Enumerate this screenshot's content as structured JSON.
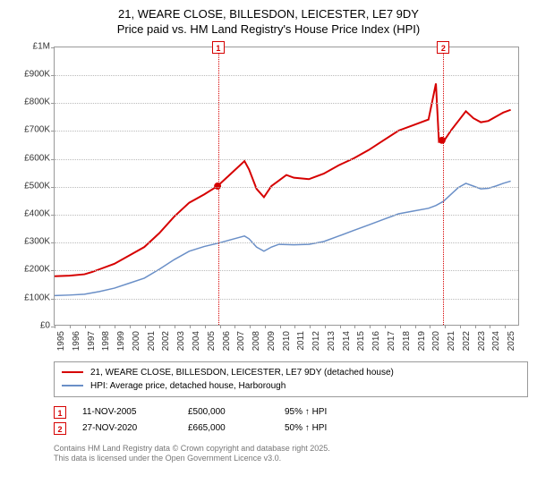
{
  "title_line1": "21, WEARE CLOSE, BILLESDON, LEICESTER, LE7 9DY",
  "title_line2": "Price paid vs. HM Land Registry's House Price Index (HPI)",
  "chart": {
    "type": "line",
    "background_color": "#ffffff",
    "grid_color": "#bbbbbb",
    "border_color": "#999999",
    "x_range": [
      1995,
      2026
    ],
    "y_range": [
      0,
      1000000
    ],
    "y_ticks": [
      0,
      100000,
      200000,
      300000,
      400000,
      500000,
      600000,
      700000,
      800000,
      900000,
      1000000
    ],
    "y_tick_labels": [
      "£0",
      "£100K",
      "£200K",
      "£300K",
      "£400K",
      "£500K",
      "£600K",
      "£700K",
      "£800K",
      "£900K",
      "£1M"
    ],
    "x_ticks": [
      1995,
      1996,
      1997,
      1998,
      1999,
      2000,
      2001,
      2002,
      2003,
      2004,
      2005,
      2006,
      2007,
      2008,
      2009,
      2010,
      2011,
      2012,
      2013,
      2014,
      2015,
      2016,
      2017,
      2018,
      2019,
      2020,
      2021,
      2022,
      2023,
      2024,
      2025
    ],
    "label_fontsize": 10,
    "series": [
      {
        "name": "21, WEARE CLOSE, BILLESDON, LEICESTER, LE7 9DY (detached house)",
        "color": "#d60000",
        "line_width": 2,
        "points": [
          [
            1995,
            175000
          ],
          [
            1996,
            177000
          ],
          [
            1997,
            182000
          ],
          [
            1997.5,
            190000
          ],
          [
            1998,
            200000
          ],
          [
            1999,
            220000
          ],
          [
            2000,
            250000
          ],
          [
            2001,
            280000
          ],
          [
            2002,
            330000
          ],
          [
            2003,
            390000
          ],
          [
            2004,
            440000
          ],
          [
            2005,
            470000
          ],
          [
            2005.9,
            500000
          ],
          [
            2006,
            505000
          ],
          [
            2006.5,
            530000
          ],
          [
            2007,
            555000
          ],
          [
            2007.7,
            590000
          ],
          [
            2008,
            560000
          ],
          [
            2008.5,
            490000
          ],
          [
            2009,
            460000
          ],
          [
            2009.5,
            500000
          ],
          [
            2010,
            520000
          ],
          [
            2010.5,
            540000
          ],
          [
            2011,
            530000
          ],
          [
            2012,
            525000
          ],
          [
            2012.5,
            535000
          ],
          [
            2013,
            545000
          ],
          [
            2014,
            575000
          ],
          [
            2015,
            600000
          ],
          [
            2016,
            630000
          ],
          [
            2017,
            665000
          ],
          [
            2018,
            700000
          ],
          [
            2019,
            720000
          ],
          [
            2019.5,
            730000
          ],
          [
            2020,
            740000
          ],
          [
            2020.5,
            870000
          ],
          [
            2020.7,
            660000
          ],
          [
            2020.9,
            665000
          ],
          [
            2021,
            660000
          ],
          [
            2021.5,
            700000
          ],
          [
            2022,
            735000
          ],
          [
            2022.5,
            770000
          ],
          [
            2023,
            745000
          ],
          [
            2023.5,
            730000
          ],
          [
            2024,
            735000
          ],
          [
            2024.5,
            750000
          ],
          [
            2025,
            765000
          ],
          [
            2025.5,
            775000
          ]
        ]
      },
      {
        "name": "HPI: Average price, detached house, Harborough",
        "color": "#6a8fc7",
        "line_width": 1.5,
        "points": [
          [
            1995,
            105000
          ],
          [
            1996,
            107000
          ],
          [
            1997,
            110000
          ],
          [
            1998,
            120000
          ],
          [
            1999,
            132000
          ],
          [
            2000,
            150000
          ],
          [
            2001,
            168000
          ],
          [
            2002,
            200000
          ],
          [
            2003,
            235000
          ],
          [
            2004,
            265000
          ],
          [
            2005,
            282000
          ],
          [
            2006,
            295000
          ],
          [
            2007,
            310000
          ],
          [
            2007.7,
            320000
          ],
          [
            2008,
            310000
          ],
          [
            2008.5,
            280000
          ],
          [
            2009,
            265000
          ],
          [
            2009.5,
            280000
          ],
          [
            2010,
            290000
          ],
          [
            2011,
            288000
          ],
          [
            2012,
            290000
          ],
          [
            2013,
            300000
          ],
          [
            2014,
            320000
          ],
          [
            2015,
            340000
          ],
          [
            2016,
            360000
          ],
          [
            2017,
            380000
          ],
          [
            2018,
            400000
          ],
          [
            2019,
            410000
          ],
          [
            2020,
            420000
          ],
          [
            2020.5,
            430000
          ],
          [
            2021,
            445000
          ],
          [
            2021.5,
            470000
          ],
          [
            2022,
            495000
          ],
          [
            2022.5,
            510000
          ],
          [
            2023,
            500000
          ],
          [
            2023.5,
            490000
          ],
          [
            2024,
            492000
          ],
          [
            2024.5,
            500000
          ],
          [
            2025,
            510000
          ],
          [
            2025.5,
            518000
          ]
        ]
      }
    ],
    "sale_markers": [
      {
        "n": "1",
        "x": 2005.9,
        "y": 500000,
        "color": "#d60000"
      },
      {
        "n": "2",
        "x": 2020.9,
        "y": 665000,
        "color": "#d60000"
      }
    ],
    "sale_dot_radius": 4
  },
  "legend": {
    "border_color": "#999999",
    "items": [
      {
        "label": "21, WEARE CLOSE, BILLESDON, LEICESTER, LE7 9DY (detached house)",
        "color": "#d60000"
      },
      {
        "label": "HPI: Average price, detached house, Harborough",
        "color": "#6a8fc7"
      }
    ]
  },
  "transactions": [
    {
      "n": "1",
      "date": "11-NOV-2005",
      "price": "£500,000",
      "pct": "95% ↑ HPI",
      "color": "#d60000"
    },
    {
      "n": "2",
      "date": "27-NOV-2020",
      "price": "£665,000",
      "pct": "50% ↑ HPI",
      "color": "#d60000"
    }
  ],
  "attribution_line1": "Contains HM Land Registry data © Crown copyright and database right 2025.",
  "attribution_line2": "This data is licensed under the Open Government Licence v3.0."
}
